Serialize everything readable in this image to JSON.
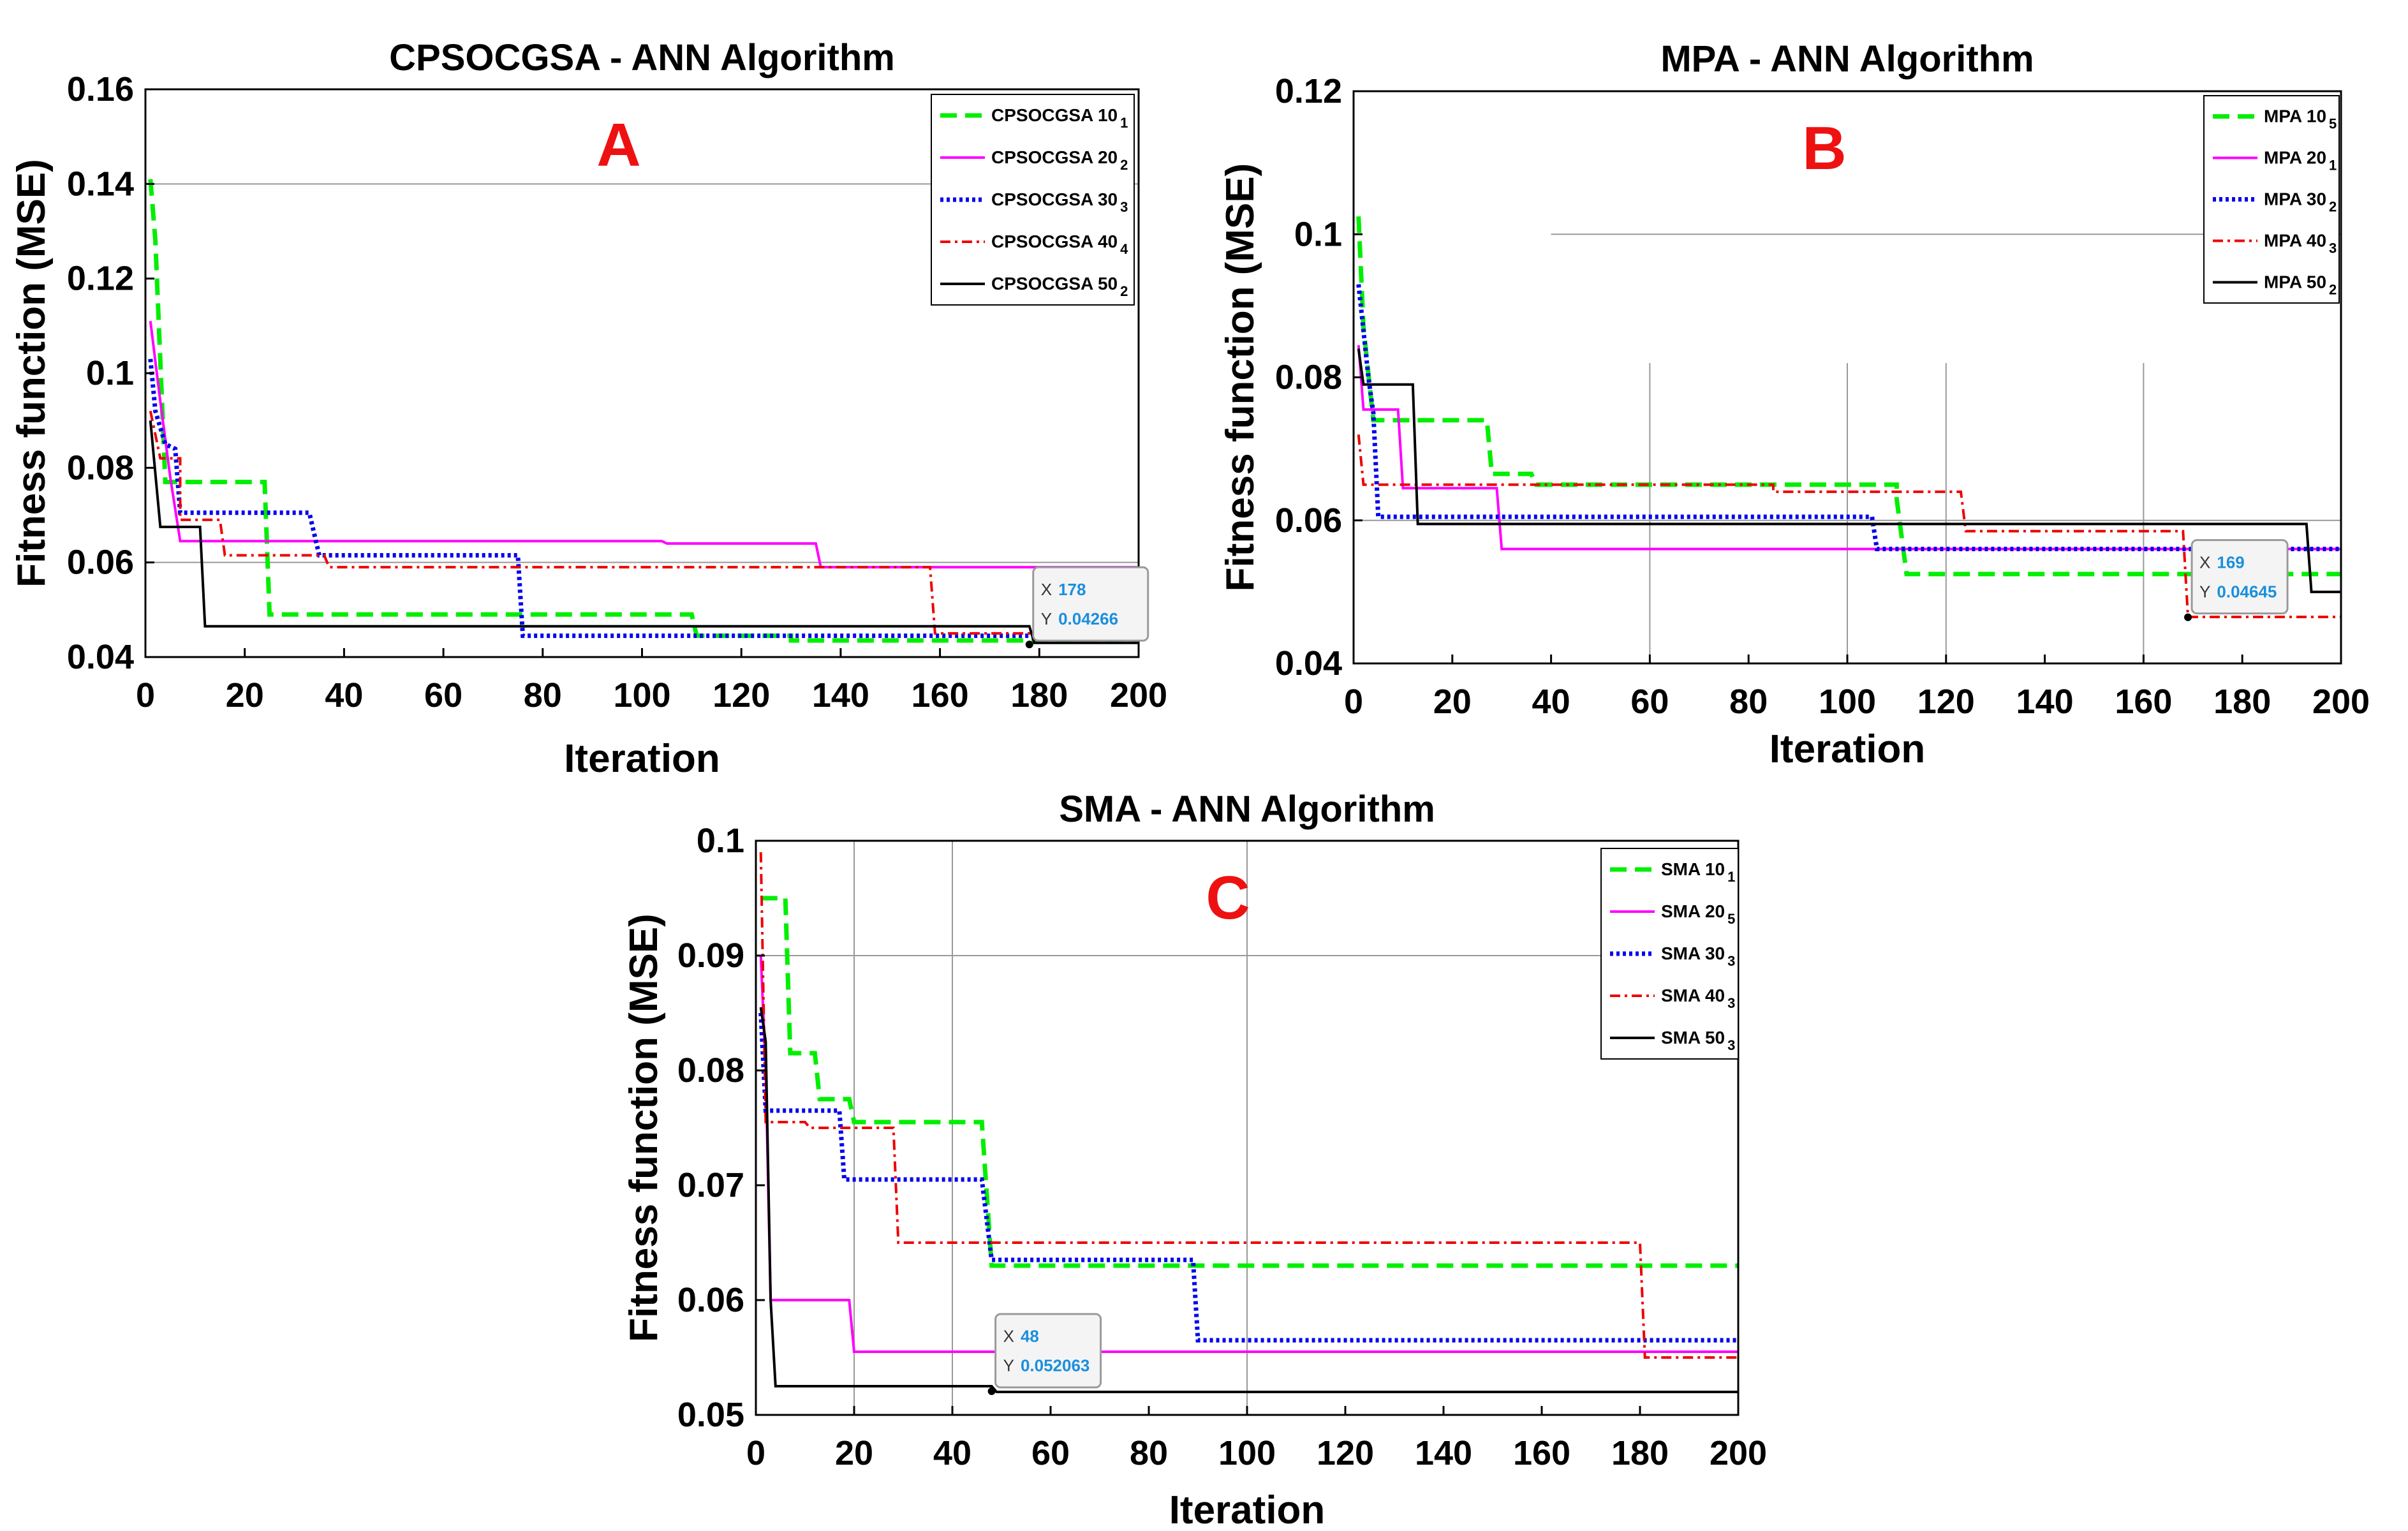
{
  "chart_data": [
    {
      "type": "line",
      "panel_letter": "A",
      "title": "CPSOCGSA - ANN Algorithm",
      "xlabel": "Iteration",
      "ylabel": "Fitness function (MSE)",
      "xlim": [
        0,
        200
      ],
      "ylim": [
        0.04,
        0.16
      ],
      "xticks": [
        0,
        20,
        40,
        60,
        80,
        100,
        120,
        140,
        160,
        180,
        200
      ],
      "yticks": [
        0.04,
        0.06,
        0.08,
        0.1,
        0.12,
        0.14,
        0.16
      ],
      "ytick_labels": [
        "0.04",
        "0.06",
        "0.08",
        "0.1",
        "0.12",
        "0.14",
        "0.16"
      ],
      "legend_position": "top-right",
      "reference_lines": [
        {
          "axis": "y",
          "value": 0.14,
          "from": 0,
          "to": 200
        },
        {
          "axis": "y",
          "value": 0.06,
          "from": 0,
          "to": 200
        }
      ],
      "series": [
        {
          "name": "CPSOCGSA 10",
          "sub": "1",
          "color": "#00ee00",
          "style": "dashed",
          "steps": [
            [
              1,
              0.141
            ],
            [
              2,
              0.128
            ],
            [
              4,
              0.077
            ],
            [
              8,
              0.077
            ],
            [
              24,
              0.077
            ],
            [
              25,
              0.049
            ],
            [
              50,
              0.049
            ],
            [
              110,
              0.049
            ],
            [
              111,
              0.0445
            ],
            [
              130,
              0.0435
            ],
            [
              200,
              0.0435
            ]
          ]
        },
        {
          "name": "CPSOCGSA 20",
          "sub": "2",
          "color": "#ff00ff",
          "style": "solid",
          "steps": [
            [
              1,
              0.111
            ],
            [
              3,
              0.094
            ],
            [
              5,
              0.078
            ],
            [
              7,
              0.0645
            ],
            [
              104,
              0.0645
            ],
            [
              105,
              0.064
            ],
            [
              135,
              0.064
            ],
            [
              136,
              0.059
            ],
            [
              200,
              0.059
            ]
          ]
        },
        {
          "name": "CPSOCGSA 30",
          "sub": "3",
          "color": "#0000ee",
          "style": "dotted",
          "steps": [
            [
              1,
              0.103
            ],
            [
              2,
              0.092
            ],
            [
              4,
              0.085
            ],
            [
              6,
              0.084
            ],
            [
              7,
              0.0705
            ],
            [
              33,
              0.0705
            ],
            [
              35,
              0.0615
            ],
            [
              75,
              0.0615
            ],
            [
              76,
              0.0445
            ],
            [
              200,
              0.0445
            ]
          ]
        },
        {
          "name": "CPSOCGSA 40",
          "sub": "4",
          "color": "#ee0000",
          "style": "dashdot",
          "steps": [
            [
              1,
              0.092
            ],
            [
              3,
              0.082
            ],
            [
              7,
              0.069
            ],
            [
              15,
              0.069
            ],
            [
              16,
              0.0615
            ],
            [
              36,
              0.0615
            ],
            [
              37,
              0.059
            ],
            [
              158,
              0.059
            ],
            [
              159,
              0.045
            ],
            [
              200,
              0.045
            ]
          ]
        },
        {
          "name": "CPSOCGSA 50",
          "sub": "2",
          "color": "#000000",
          "style": "solid",
          "steps": [
            [
              1,
              0.09
            ],
            [
              3,
              0.0675
            ],
            [
              11,
              0.0675
            ],
            [
              12,
              0.0465
            ],
            [
              178,
              0.0465
            ],
            [
              179,
              0.043
            ],
            [
              200,
              0.043
            ]
          ]
        }
      ],
      "datatip": {
        "x": 178,
        "y": 0.04266,
        "x_text": "178",
        "y_text": "0.04266"
      }
    },
    {
      "type": "line",
      "panel_letter": "B",
      "title": "MPA - ANN Algorithm",
      "xlabel": "Iteration",
      "ylabel": "Fitness function (MSE)",
      "xlim": [
        0,
        200
      ],
      "ylim": [
        0.04,
        0.12
      ],
      "xticks": [
        0,
        20,
        40,
        60,
        80,
        100,
        120,
        140,
        160,
        180,
        200
      ],
      "yticks": [
        0.04,
        0.06,
        0.08,
        0.1,
        0.12
      ],
      "ytick_labels": [
        "0.04",
        "0.06",
        "0.08",
        "0.1",
        "0.12"
      ],
      "legend_position": "top-right",
      "vgrid": [
        60,
        100,
        120,
        160
      ],
      "vgrid_ymax": 0.082,
      "reference_lines": [
        {
          "axis": "y",
          "value": 0.1,
          "from": 40,
          "to": 200
        },
        {
          "axis": "y",
          "value": 0.06,
          "from": 0,
          "to": 200
        }
      ],
      "series": [
        {
          "name": "MPA 10",
          "sub": "5",
          "color": "#00ee00",
          "style": "dashed",
          "steps": [
            [
              1,
              0.1025
            ],
            [
              2,
              0.087
            ],
            [
              4,
              0.074
            ],
            [
              27,
              0.074
            ],
            [
              28,
              0.0665
            ],
            [
              36,
              0.0665
            ],
            [
              37,
              0.065
            ],
            [
              110,
              0.063
            ],
            [
              112,
              0.0525
            ],
            [
              200,
              0.0525
            ]
          ]
        },
        {
          "name": "MPA 20",
          "sub": "1",
          "color": "#ff00ff",
          "style": "solid",
          "steps": [
            [
              1,
              0.0845
            ],
            [
              2,
              0.0755
            ],
            [
              9,
              0.0755
            ],
            [
              10,
              0.0645
            ],
            [
              29,
              0.0645
            ],
            [
              30,
              0.056
            ],
            [
              200,
              0.056
            ]
          ]
        },
        {
          "name": "MPA 30",
          "sub": "2",
          "color": "#0000ee",
          "style": "dotted",
          "steps": [
            [
              1,
              0.093
            ],
            [
              3,
              0.08
            ],
            [
              4,
              0.075
            ],
            [
              5,
              0.0605
            ],
            [
              105,
              0.0605
            ],
            [
              106,
              0.056
            ],
            [
              200,
              0.056
            ]
          ]
        },
        {
          "name": "MPA 40",
          "sub": "3",
          "color": "#ee0000",
          "style": "dashdot",
          "steps": [
            [
              1,
              0.072
            ],
            [
              2,
              0.065
            ],
            [
              85,
              0.064
            ],
            [
              123,
              0.064
            ],
            [
              124,
              0.0585
            ],
            [
              168,
              0.0585
            ],
            [
              169,
              0.0465
            ],
            [
              200,
              0.0465
            ]
          ]
        },
        {
          "name": "MPA 50",
          "sub": "2",
          "color": "#000000",
          "style": "solid",
          "steps": [
            [
              1,
              0.084
            ],
            [
              2,
              0.079
            ],
            [
              12,
              0.079
            ],
            [
              13,
              0.0595
            ],
            [
              193,
              0.0595
            ],
            [
              194,
              0.05
            ],
            [
              200,
              0.05
            ]
          ]
        }
      ],
      "datatip": {
        "x": 169,
        "y": 0.04645,
        "x_text": "169",
        "y_text": "0.04645"
      }
    },
    {
      "type": "line",
      "panel_letter": "C",
      "title": "SMA - ANN Algorithm",
      "xlabel": "Iteration",
      "ylabel": "Fitness function (MSE)",
      "xlim": [
        0,
        200
      ],
      "ylim": [
        0.05,
        0.1
      ],
      "xticks": [
        0,
        20,
        40,
        60,
        80,
        100,
        120,
        140,
        160,
        180,
        200
      ],
      "yticks": [
        0.05,
        0.06,
        0.07,
        0.08,
        0.09,
        0.1
      ],
      "ytick_labels": [
        "0.05",
        "0.06",
        "0.07",
        "0.08",
        "0.09",
        "0.1"
      ],
      "legend_position": "top-right",
      "vgrid": [
        20,
        40,
        100
      ],
      "vgrid_ymax": 0.1,
      "reference_lines": [
        {
          "axis": "y",
          "value": 0.09,
          "from": 0,
          "to": 200
        }
      ],
      "series": [
        {
          "name": "SMA 10",
          "sub": "1",
          "color": "#00ee00",
          "style": "dashed",
          "steps": [
            [
              1,
              0.095
            ],
            [
              6,
              0.095
            ],
            [
              7,
              0.0815
            ],
            [
              12,
              0.0815
            ],
            [
              13,
              0.0775
            ],
            [
              19,
              0.0775
            ],
            [
              20,
              0.0755
            ],
            [
              46,
              0.0755
            ],
            [
              48,
              0.063
            ],
            [
              200,
              0.063
            ]
          ]
        },
        {
          "name": "SMA 20",
          "sub": "5",
          "color": "#ff00ff",
          "style": "solid",
          "steps": [
            [
              1,
              0.09
            ],
            [
              2,
              0.08
            ],
            [
              3,
              0.06
            ],
            [
              19,
              0.06
            ],
            [
              20,
              0.0555
            ],
            [
              200,
              0.0555
            ]
          ]
        },
        {
          "name": "SMA 30",
          "sub": "3",
          "color": "#0000ee",
          "style": "dotted",
          "steps": [
            [
              1,
              0.085
            ],
            [
              2,
              0.0765
            ],
            [
              17,
              0.0765
            ],
            [
              18,
              0.0705
            ],
            [
              46,
              0.0705
            ],
            [
              48,
              0.0635
            ],
            [
              89,
              0.0635
            ],
            [
              90,
              0.0565
            ],
            [
              200,
              0.0565
            ]
          ]
        },
        {
          "name": "SMA 40",
          "sub": "3",
          "color": "#ee0000",
          "style": "dashdot",
          "steps": [
            [
              1,
              0.099
            ],
            [
              2,
              0.0755
            ],
            [
              10,
              0.0755
            ],
            [
              11,
              0.075
            ],
            [
              28,
              0.075
            ],
            [
              29,
              0.065
            ],
            [
              180,
              0.065
            ],
            [
              181,
              0.055
            ],
            [
              200,
              0.055
            ]
          ]
        },
        {
          "name": "SMA 50",
          "sub": "3",
          "color": "#000000",
          "style": "solid",
          "steps": [
            [
              1,
              0.0855
            ],
            [
              2,
              0.0825
            ],
            [
              3,
              0.06
            ],
            [
              4,
              0.0525
            ],
            [
              48,
              0.0525
            ],
            [
              49,
              0.052
            ],
            [
              200,
              0.052
            ]
          ]
        }
      ],
      "datatip": {
        "x": 48,
        "y": 0.052063,
        "x_text": "48",
        "y_text": "0.052063"
      }
    }
  ],
  "datatip_prefix": {
    "x": "X",
    "y": "Y"
  },
  "colors": {
    "panel_letter": "#ee1111",
    "datatip_value": "#1a8fdd",
    "axis": "#000000",
    "grid": "#999999"
  }
}
